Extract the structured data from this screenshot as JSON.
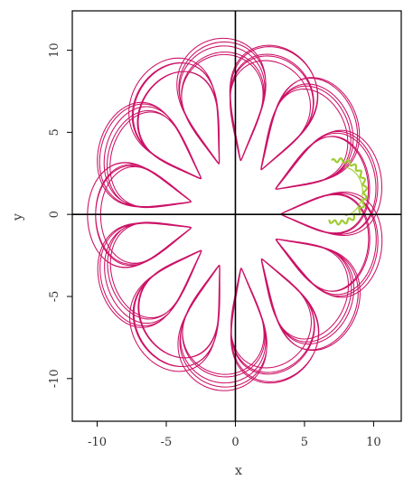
{
  "chart_data": {
    "type": "line",
    "title": "",
    "xlabel": "x",
    "ylabel": "y",
    "xlim": [
      -11.8,
      12.0
    ],
    "ylim": [
      -12.6,
      12.4
    ],
    "x_ticks": [
      -10,
      -5,
      0,
      5,
      10
    ],
    "y_ticks": [
      -10,
      -5,
      0,
      5,
      10
    ],
    "x_tick_labels": [
      "-10",
      "-5",
      "0",
      "5",
      "10"
    ],
    "y_tick_labels": [
      "-10",
      "-5",
      "0",
      "5",
      "10"
    ],
    "zero_lines": true,
    "grid": false,
    "legend": "none",
    "series": [
      {
        "color": "#cc1166",
        "curve": "rosette orbit",
        "x_range": [
          -10.6,
          10.9
        ],
        "y_range": [
          -10.9,
          10.9
        ],
        "inner_radius": 3.3,
        "outer_radius": 10.8,
        "lobes": 12,
        "turns": 5
      },
      {
        "color": "#9fcc33",
        "curve": "arc segment",
        "x_range": [
          5.6,
          9.0
        ],
        "y_range": [
          -0.6,
          3.4
        ],
        "center": [
          7.5,
          1.4
        ]
      }
    ]
  }
}
